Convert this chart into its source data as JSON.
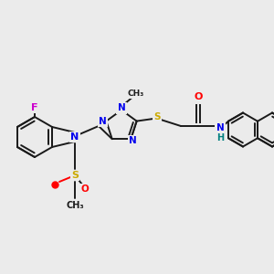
{
  "bg_color": "#ebebeb",
  "bond_color": "#1a1a1a",
  "atom_colors": {
    "F": "#cc00cc",
    "N": "#0000ee",
    "O": "#ff0000",
    "S": "#ccaa00",
    "NH": "#008080",
    "C": "#1a1a1a"
  },
  "figsize": [
    3.0,
    3.0
  ],
  "dpi": 100,
  "xlim": [
    0,
    3.0
  ],
  "ylim": [
    0,
    3.0
  ]
}
